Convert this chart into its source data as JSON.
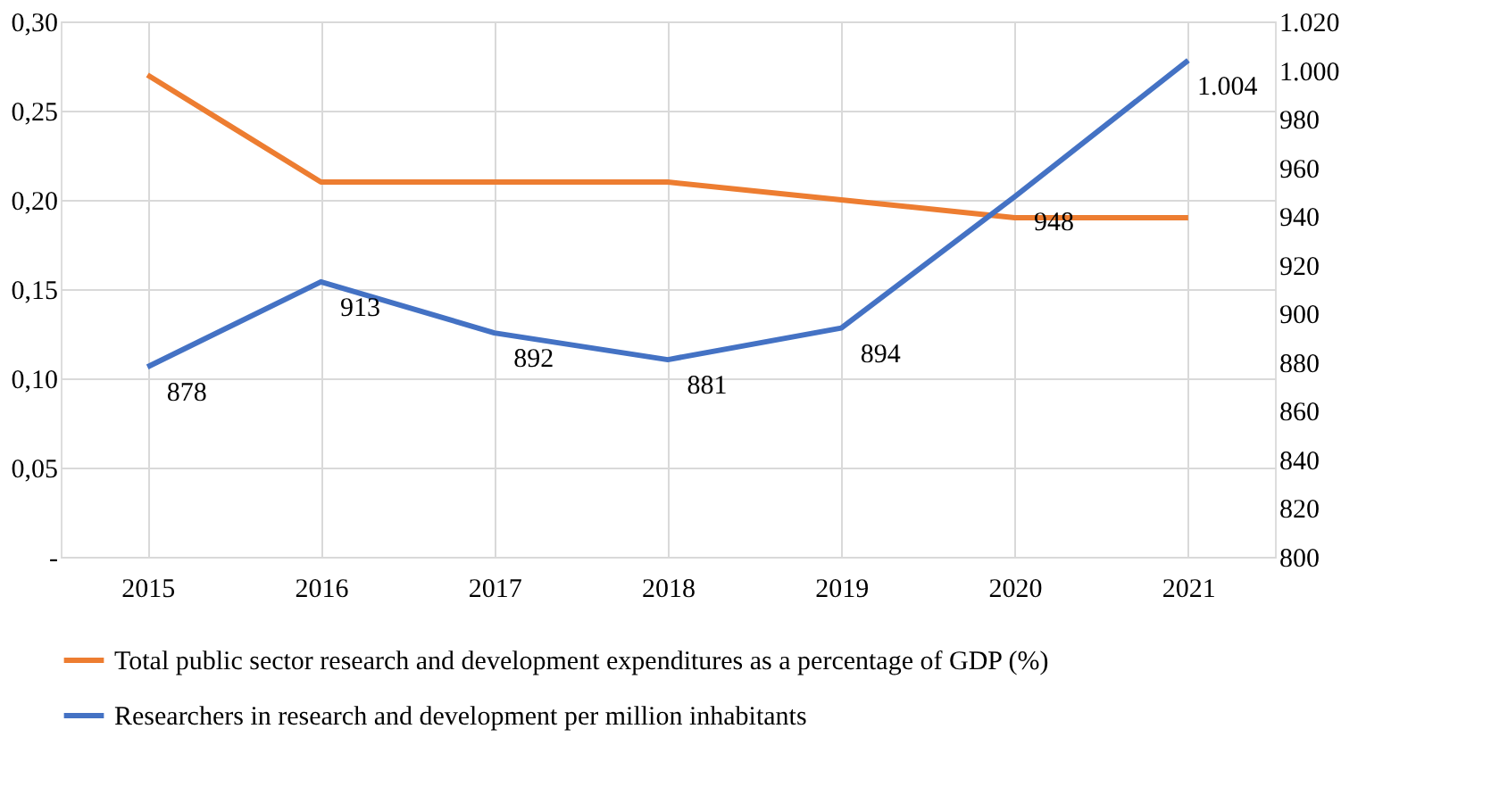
{
  "chart_data": {
    "type": "line",
    "categories": [
      "2015",
      "2016",
      "2017",
      "2018",
      "2019",
      "2020",
      "2021"
    ],
    "series": [
      {
        "name": "Total public sector research and development expenditures as a percentage of GDP (%)",
        "color": "#ed7d31",
        "values": [
          0.27,
          0.21,
          0.21,
          0.21,
          0.2,
          0.19,
          0.19
        ]
      },
      {
        "name": "Researchers in research and development per million inhabitants",
        "color": "#4472c4",
        "axis": "y2",
        "values": [
          878,
          913,
          892,
          881,
          894,
          948,
          1004
        ],
        "value_labels": [
          "878",
          "913",
          "892",
          "881",
          "894",
          "948",
          "1.004"
        ]
      }
    ],
    "ylim": [
      0,
      0.3
    ],
    "yticks": [
      {
        "value": 0,
        "label": "-"
      },
      {
        "value": 0.05,
        "label": "0,05"
      },
      {
        "value": 0.1,
        "label": "0,10"
      },
      {
        "value": 0.15,
        "label": "0,15"
      },
      {
        "value": 0.2,
        "label": "0,20"
      },
      {
        "value": 0.25,
        "label": "0,25"
      },
      {
        "value": 0.3,
        "label": "0,30"
      }
    ],
    "y2lim": [
      800,
      1020
    ],
    "y2ticks": [
      800,
      820,
      840,
      860,
      880,
      900,
      920,
      940,
      960,
      980,
      {
        "value": 1000,
        "label": "1.000"
      },
      {
        "value": 1020,
        "label": "1.020"
      }
    ],
    "grid": true,
    "legend": "bottom",
    "marker": "none",
    "line_style": "solid"
  }
}
